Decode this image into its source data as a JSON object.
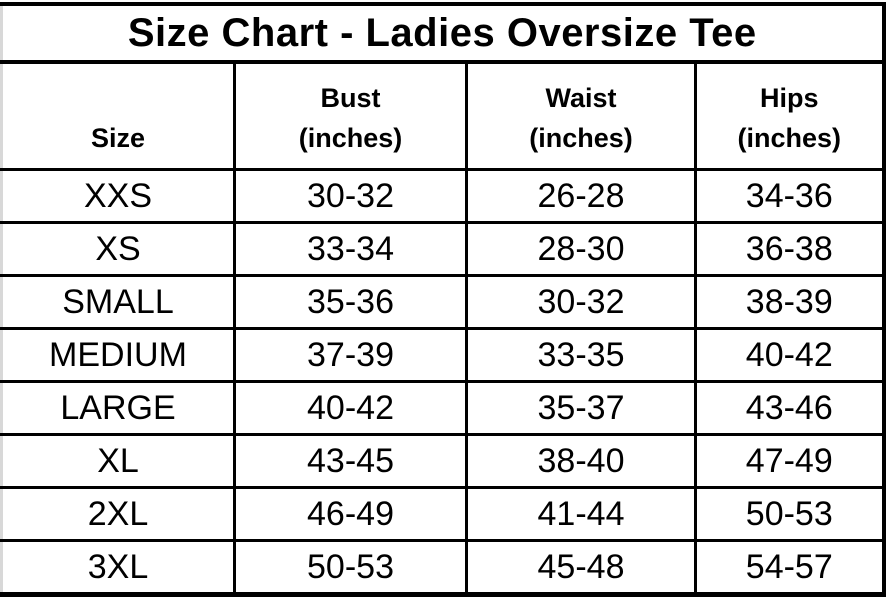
{
  "page_title": "Size Chart - Ladies Oversize Tee",
  "chart_data": {
    "type": "table",
    "title": "Size Chart - Ladies Oversize Tee",
    "columns": [
      {
        "id": "size",
        "label": "Size",
        "sublabel": ""
      },
      {
        "id": "bust",
        "label": "Bust",
        "sublabel": "(inches)"
      },
      {
        "id": "waist",
        "label": "Waist",
        "sublabel": "(inches)"
      },
      {
        "id": "hips",
        "label": "Hips",
        "sublabel": "(inches)"
      }
    ],
    "rows": [
      {
        "size": "XXS",
        "bust": "30-32",
        "waist": "26-28",
        "hips": "34-36"
      },
      {
        "size": "XS",
        "bust": "33-34",
        "waist": "28-30",
        "hips": "36-38"
      },
      {
        "size": "SMALL",
        "bust": "35-36",
        "waist": "30-32",
        "hips": "38-39"
      },
      {
        "size": "MEDIUM",
        "bust": "37-39",
        "waist": "33-35",
        "hips": "40-42"
      },
      {
        "size": "LARGE",
        "bust": "40-42",
        "waist": "35-37",
        "hips": "43-46"
      },
      {
        "size": "XL",
        "bust": "43-45",
        "waist": "38-40",
        "hips": "47-49"
      },
      {
        "size": "2XL",
        "bust": "46-49",
        "waist": "41-44",
        "hips": "50-53"
      },
      {
        "size": "3XL",
        "bust": "50-53",
        "waist": "45-48",
        "hips": "54-57"
      }
    ]
  },
  "colors": {
    "border": "#000000",
    "text": "#000000",
    "background": "#ffffff",
    "left_edge": "#d8d8d8"
  }
}
